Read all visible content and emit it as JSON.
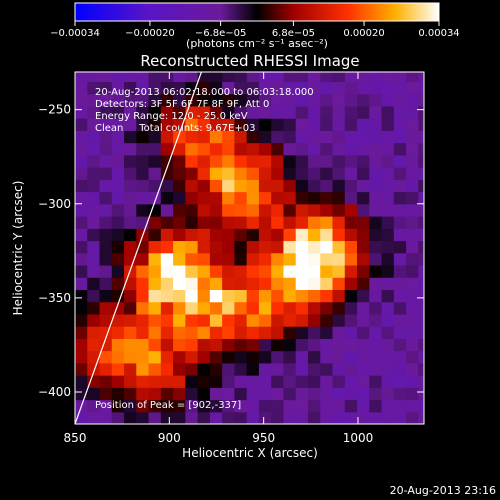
{
  "colorbar": {
    "tick_labels": [
      "−0.00034",
      "−0.00020",
      "−6.8e−05",
      "6.8e−05",
      "0.00020",
      "0.00034"
    ],
    "tick_values": [
      -0.00034,
      -0.0002,
      -6.8e-05,
      6.8e-05,
      0.0002,
      0.00034
    ],
    "range": [
      -0.00034,
      0.00034
    ],
    "units_label": "(photons cm⁻² s⁻¹ asec⁻²)"
  },
  "chart_data": {
    "type": "heatmap",
    "title": "Reconstructed RHESSI Image",
    "xlabel": "Heliocentric X (arcsec)",
    "ylabel": "Heliocentric Y (arcsec)",
    "xlim": [
      850,
      1035
    ],
    "ylim": [
      -417,
      -230
    ],
    "x_ticks": [
      850,
      900,
      950,
      1000
    ],
    "y_ticks": [
      -250,
      -300,
      -350,
      -400
    ],
    "x_tick_labels": [
      "850",
      "900",
      "950",
      "1000"
    ],
    "y_tick_labels": [
      "−250",
      "−300",
      "−350",
      "−400"
    ],
    "annotations": [
      "20-Aug-2013 06:02:18.000 to 06:03:18.000",
      "Detectors: 3F 5F 6F 7F 8F 9F, Att 0",
      "Energy Range: 12.0 - 25.0 keV",
      "Clean     Total counts: 9.67E+03"
    ],
    "peak_label": "Position of Peak = [902,-337]",
    "sources": [
      {
        "x": 902,
        "y": -337,
        "peak": 1.0
      },
      {
        "x": 980,
        "y": -325,
        "peak": 0.95
      },
      {
        "x": 940,
        "y": -290,
        "peak": 0.75
      },
      {
        "x": 915,
        "y": -265,
        "peak": 0.6
      },
      {
        "x": 930,
        "y": -360,
        "peak": 0.6
      },
      {
        "x": 960,
        "y": -345,
        "peak": 0.55
      },
      {
        "x": 870,
        "y": -375,
        "peak": 0.55
      },
      {
        "x": 895,
        "y": -385,
        "peak": 0.5
      }
    ],
    "limb_line": [
      [
        850,
        -417
      ],
      [
        917,
        -230
      ]
    ]
  },
  "footer": {
    "timestamp": "20-Aug-2013 23:16"
  }
}
